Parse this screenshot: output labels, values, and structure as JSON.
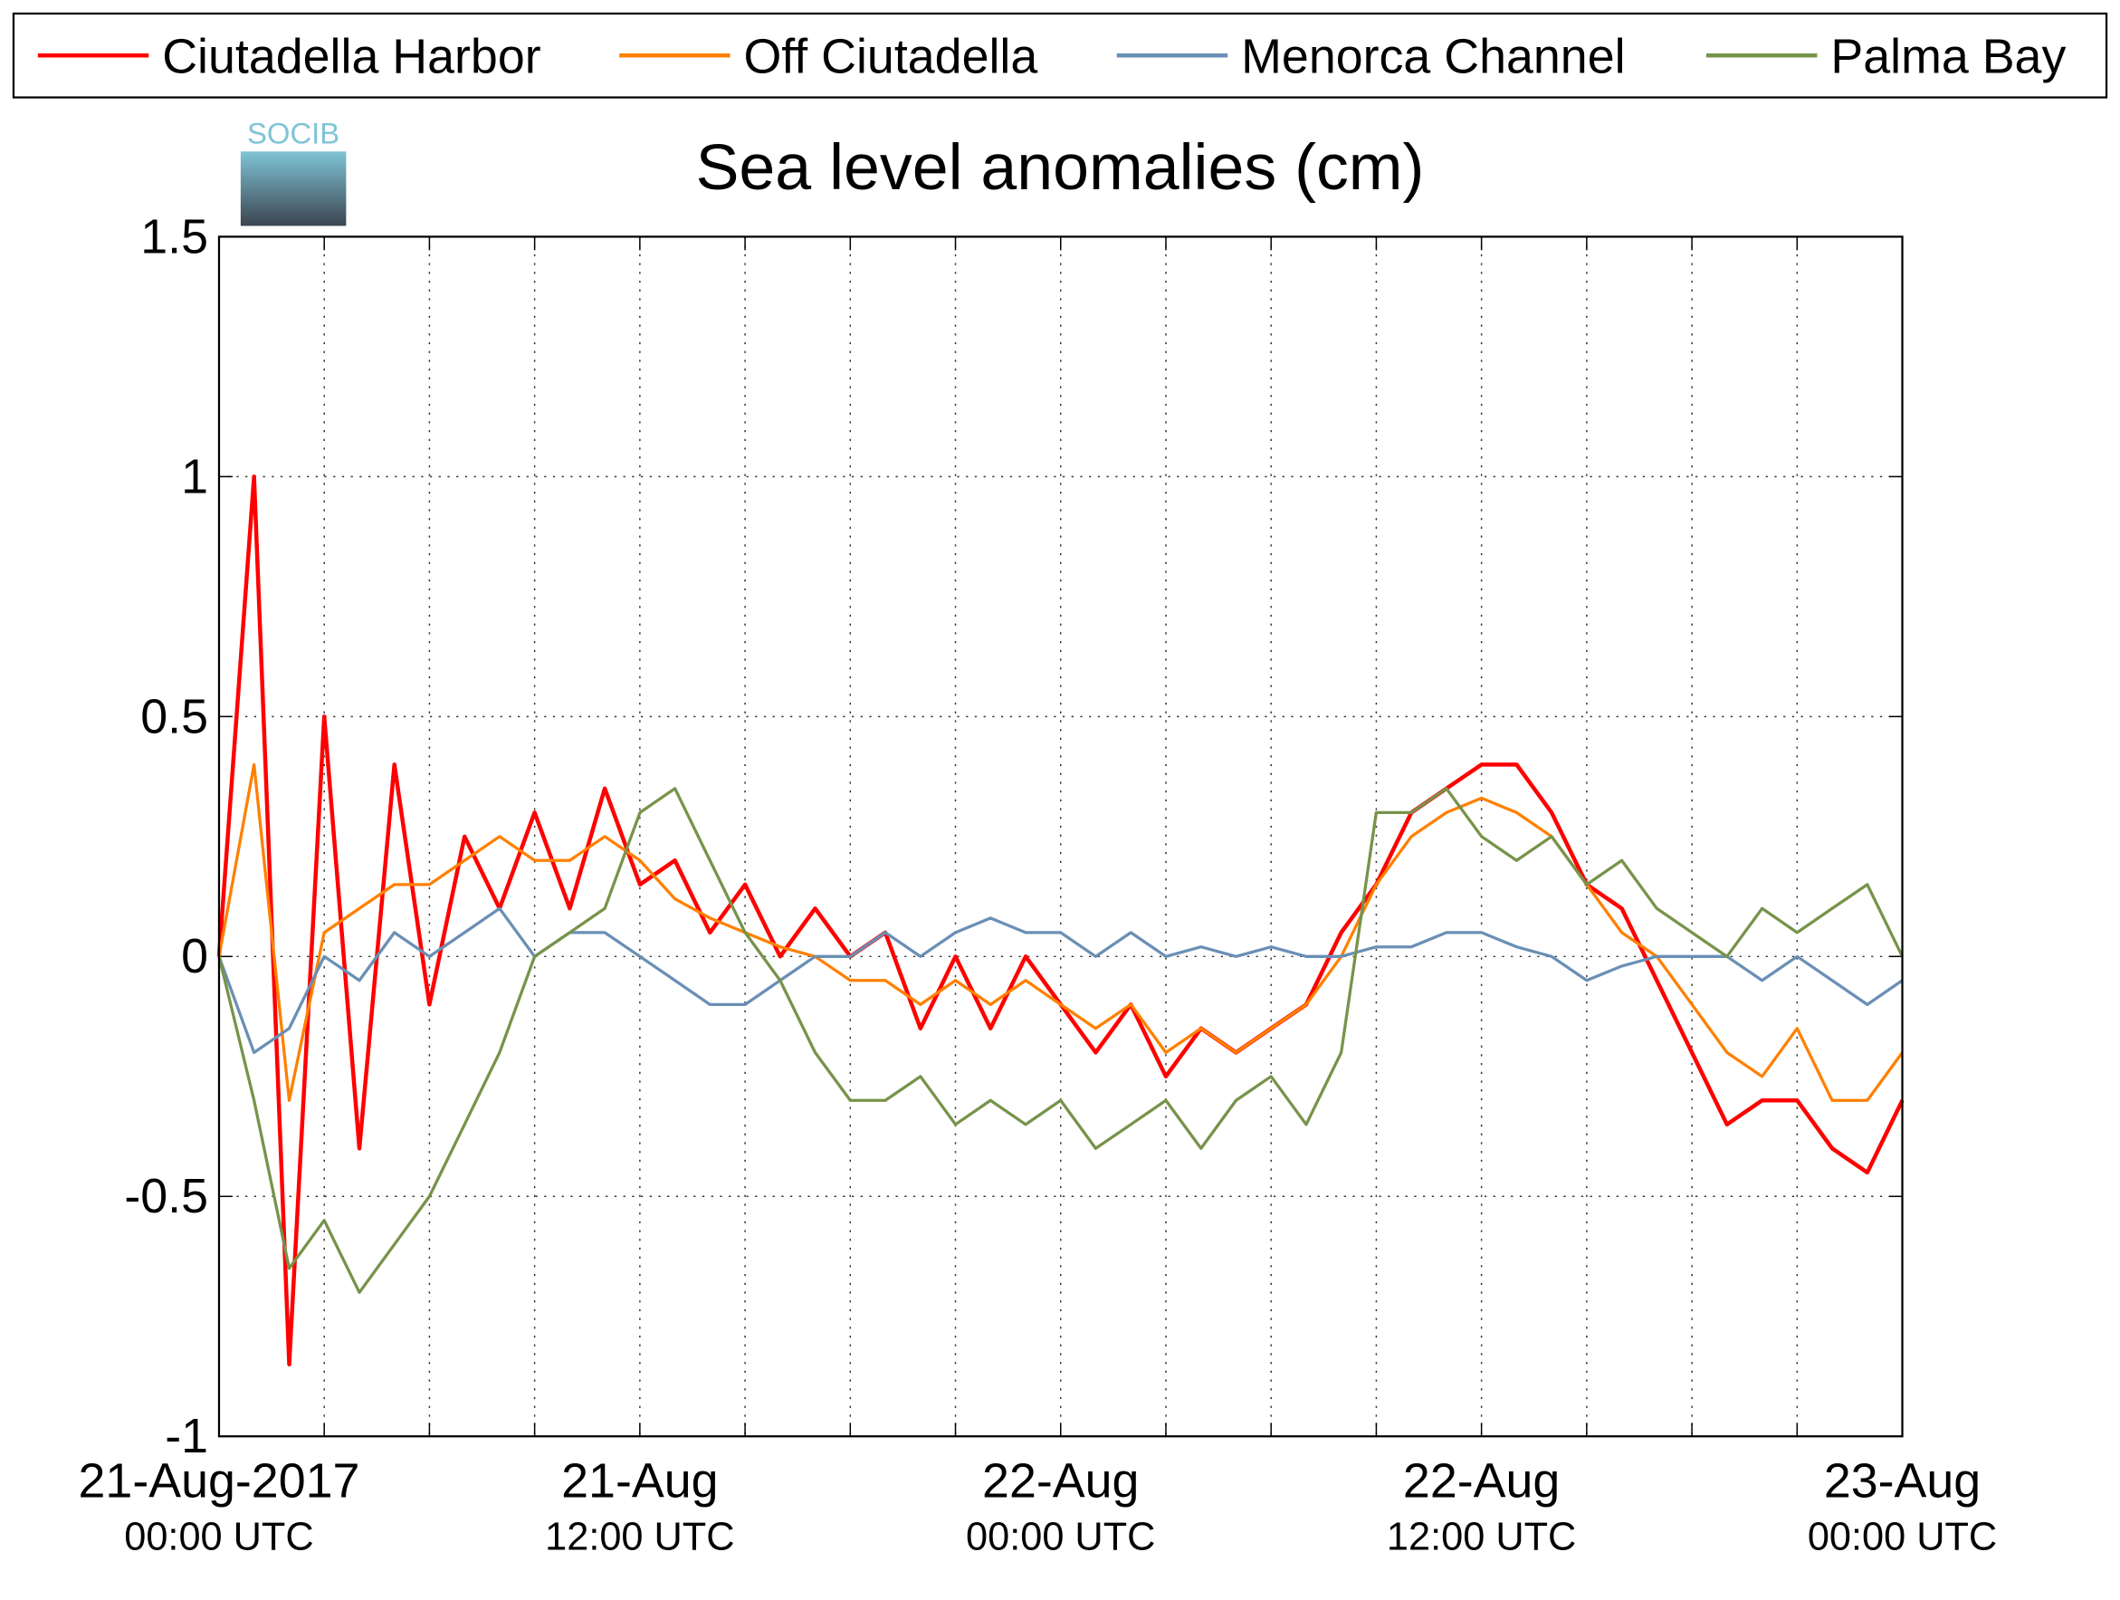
{
  "chart_data": {
    "type": "line",
    "title": "Sea level anomalies (cm)",
    "logo": "SOCIB",
    "legend": "top",
    "grid": true,
    "x": [
      "2017-08-21T00:00",
      "2017-08-21T01:00",
      "2017-08-21T02:00",
      "2017-08-21T03:00",
      "2017-08-21T04:00",
      "2017-08-21T05:00",
      "2017-08-21T06:00",
      "2017-08-21T07:00",
      "2017-08-21T08:00",
      "2017-08-21T09:00",
      "2017-08-21T10:00",
      "2017-08-21T11:00",
      "2017-08-21T12:00",
      "2017-08-21T13:00",
      "2017-08-21T14:00",
      "2017-08-21T15:00",
      "2017-08-21T16:00",
      "2017-08-21T17:00",
      "2017-08-21T18:00",
      "2017-08-21T19:00",
      "2017-08-21T20:00",
      "2017-08-21T21:00",
      "2017-08-21T22:00",
      "2017-08-21T23:00",
      "2017-08-22T00:00",
      "2017-08-22T01:00",
      "2017-08-22T02:00",
      "2017-08-22T03:00",
      "2017-08-22T04:00",
      "2017-08-22T05:00",
      "2017-08-22T06:00",
      "2017-08-22T07:00",
      "2017-08-22T08:00",
      "2017-08-22T09:00",
      "2017-08-22T10:00",
      "2017-08-22T11:00",
      "2017-08-22T12:00",
      "2017-08-22T13:00",
      "2017-08-22T14:00",
      "2017-08-22T15:00",
      "2017-08-22T16:00",
      "2017-08-22T17:00",
      "2017-08-22T18:00",
      "2017-08-22T19:00",
      "2017-08-22T20:00",
      "2017-08-22T21:00",
      "2017-08-22T22:00",
      "2017-08-22T23:00",
      "2017-08-23T00:00"
    ],
    "series": [
      {
        "name": "Ciutadella Harbor",
        "color": "#ff0000",
        "values": [
          0.0,
          1.0,
          -0.85,
          0.5,
          -0.4,
          0.4,
          -0.1,
          0.25,
          0.1,
          0.3,
          0.1,
          0.35,
          0.15,
          0.2,
          0.05,
          0.15,
          0.0,
          0.1,
          0.0,
          0.05,
          -0.15,
          0.0,
          -0.15,
          0.0,
          -0.1,
          -0.2,
          -0.1,
          -0.25,
          -0.15,
          -0.2,
          -0.15,
          -0.1,
          0.05,
          0.15,
          0.3,
          0.35,
          0.4,
          0.4,
          0.3,
          0.15,
          0.1,
          -0.05,
          -0.2,
          -0.35,
          -0.3,
          -0.3,
          -0.4,
          -0.45,
          -0.3
        ]
      },
      {
        "name": "Off Ciutadella",
        "color": "#ff8000",
        "values": [
          0.0,
          0.4,
          -0.3,
          0.05,
          0.1,
          0.15,
          0.15,
          0.2,
          0.25,
          0.2,
          0.2,
          0.25,
          0.2,
          0.12,
          0.08,
          0.05,
          0.02,
          0.0,
          -0.05,
          -0.05,
          -0.1,
          -0.05,
          -0.1,
          -0.05,
          -0.1,
          -0.15,
          -0.1,
          -0.2,
          -0.15,
          -0.2,
          -0.15,
          -0.1,
          0.0,
          0.15,
          0.25,
          0.3,
          0.33,
          0.3,
          0.25,
          0.15,
          0.05,
          0.0,
          -0.1,
          -0.2,
          -0.25,
          -0.15,
          -0.3,
          -0.3,
          -0.2
        ]
      },
      {
        "name": "Menorca Channel",
        "color": "#6a8fb5",
        "values": [
          0.0,
          -0.2,
          -0.15,
          0.0,
          -0.05,
          0.05,
          0.0,
          0.05,
          0.1,
          0.0,
          0.05,
          0.05,
          0.0,
          -0.05,
          -0.1,
          -0.1,
          -0.05,
          0.0,
          0.0,
          0.05,
          0.0,
          0.05,
          0.08,
          0.05,
          0.05,
          0.0,
          0.05,
          0.0,
          0.02,
          0.0,
          0.02,
          0.0,
          0.0,
          0.02,
          0.02,
          0.05,
          0.05,
          0.02,
          0.0,
          -0.05,
          -0.02,
          0.0,
          0.0,
          0.0,
          -0.05,
          0.0,
          -0.05,
          -0.1,
          -0.05
        ]
      },
      {
        "name": "Palma Bay",
        "color": "#77934a",
        "values": [
          0.0,
          -0.3,
          -0.65,
          -0.55,
          -0.7,
          -0.6,
          -0.5,
          -0.35,
          -0.2,
          0.0,
          0.05,
          0.1,
          0.3,
          0.35,
          0.2,
          0.05,
          -0.05,
          -0.2,
          -0.3,
          -0.3,
          -0.25,
          -0.35,
          -0.3,
          -0.35,
          -0.3,
          -0.4,
          -0.35,
          -0.3,
          -0.4,
          -0.3,
          -0.25,
          -0.35,
          -0.2,
          0.3,
          0.3,
          0.35,
          0.25,
          0.2,
          0.25,
          0.15,
          0.2,
          0.1,
          0.05,
          0.0,
          0.1,
          0.05,
          0.1,
          0.15,
          0.0
        ]
      }
    ],
    "xlim": [
      "2017-08-21T00:00",
      "2017-08-23T00:00"
    ],
    "xticks": [
      {
        "value": "2017-08-21T00:00",
        "label": [
          "21-Aug-2017",
          "00:00 UTC"
        ]
      },
      {
        "value": "2017-08-21T12:00",
        "label": [
          "21-Aug",
          "12:00 UTC"
        ]
      },
      {
        "value": "2017-08-22T00:00",
        "label": [
          "22-Aug",
          "00:00 UTC"
        ]
      },
      {
        "value": "2017-08-22T12:00",
        "label": [
          "22-Aug",
          "12:00 UTC"
        ]
      },
      {
        "value": "2017-08-23T00:00",
        "label": [
          "23-Aug",
          "00:00 UTC"
        ]
      }
    ],
    "xminorticks": [
      "2017-08-21T03:00",
      "2017-08-21T06:00",
      "2017-08-21T09:00",
      "2017-08-21T15:00",
      "2017-08-21T18:00",
      "2017-08-21T21:00",
      "2017-08-22T03:00",
      "2017-08-22T06:00",
      "2017-08-22T09:00",
      "2017-08-22T15:00",
      "2017-08-22T18:00",
      "2017-08-22T21:00"
    ],
    "ylim": [
      -1,
      1.5
    ],
    "yticks": [
      -1,
      -0.5,
      0,
      0.5,
      1,
      1.5
    ]
  }
}
